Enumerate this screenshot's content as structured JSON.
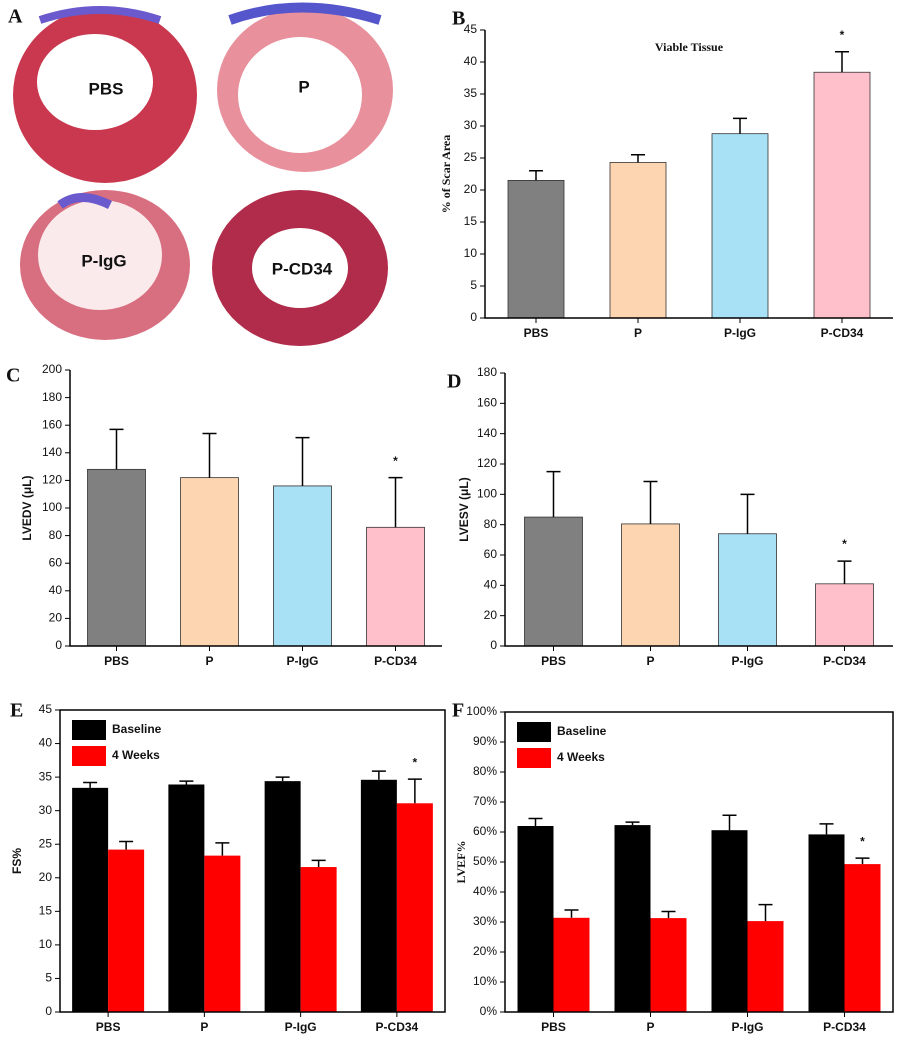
{
  "panel_a": {
    "panel_label": "A",
    "sections": [
      "PBS",
      "P",
      "P-IgG",
      "P-CD34"
    ]
  },
  "chart_data": [
    {
      "type": "bar",
      "panel_label": "B",
      "title": "Viable Tissue",
      "y_label": "% of Scar Area",
      "categories": [
        "PBS",
        "P",
        "P-IgG",
        "P-CD34"
      ],
      "values": [
        21.5,
        24.3,
        28.8,
        38.4
      ],
      "errors": [
        1.5,
        1.2,
        2.4,
        3.2
      ],
      "colors": [
        "#808080",
        "#fdd5b1",
        "#a8e0f5",
        "#ffc0cb"
      ],
      "ylim": [
        0,
        45
      ],
      "yticks": [
        0,
        5,
        10,
        15,
        20,
        25,
        30,
        35,
        40,
        45
      ],
      "annotations": [
        "*"
      ]
    },
    {
      "type": "bar",
      "panel_label": "C",
      "y_label": "LVEDV (μL)",
      "categories": [
        "PBS",
        "P",
        "P-IgG",
        "P-CD34"
      ],
      "values": [
        128,
        122,
        116,
        86
      ],
      "errors": [
        29,
        32,
        35,
        36
      ],
      "colors": [
        "#808080",
        "#fdd5b1",
        "#a8e0f5",
        "#ffc0cb"
      ],
      "ylim": [
        0,
        200
      ],
      "yticks": [
        0,
        20,
        40,
        60,
        80,
        100,
        120,
        140,
        160,
        180,
        200
      ],
      "annotations": [
        "*"
      ]
    },
    {
      "type": "bar",
      "panel_label": "D",
      "y_label": "LVESV (μL)",
      "categories": [
        "PBS",
        "P",
        "P-IgG",
        "P-CD34"
      ],
      "values": [
        85,
        80.5,
        74,
        41
      ],
      "errors": [
        30,
        28,
        26,
        15
      ],
      "colors": [
        "#808080",
        "#fdd5b1",
        "#a8e0f5",
        "#ffc0cb"
      ],
      "ylim": [
        0,
        180
      ],
      "yticks": [
        0,
        20,
        40,
        60,
        80,
        100,
        120,
        140,
        160,
        180
      ],
      "annotations": [
        "*"
      ]
    },
    {
      "type": "grouped_bar",
      "panel_label": "E",
      "y_label": "FS%",
      "categories": [
        "PBS",
        "P",
        "P-IgG",
        "P-CD34"
      ],
      "series": [
        {
          "name": "Baseline",
          "color": "#000000",
          "values": [
            33.4,
            33.9,
            34.4,
            34.6
          ],
          "errors": [
            0.8,
            0.5,
            0.6,
            1.3
          ]
        },
        {
          "name": "4 Weeks",
          "color": "#ff0000",
          "values": [
            24.2,
            23.3,
            21.6,
            31.1
          ],
          "errors": [
            1.2,
            1.9,
            1.0,
            3.6
          ]
        }
      ],
      "ylim": [
        0,
        45
      ],
      "yticks": [
        0,
        5,
        10,
        15,
        20,
        25,
        30,
        35,
        40,
        45
      ],
      "legend": "upper left",
      "annotations": [
        "*"
      ]
    },
    {
      "type": "grouped_bar",
      "panel_label": "F",
      "y_label": "LVEF%",
      "categories": [
        "PBS",
        "P",
        "P-IgG",
        "P-CD34"
      ],
      "series": [
        {
          "name": "Baseline",
          "color": "#000000",
          "values": [
            62,
            62.3,
            60.6,
            59.2
          ],
          "errors": [
            2.5,
            1,
            5,
            3.5
          ]
        },
        {
          "name": "4 Weeks",
          "color": "#ff0000",
          "values": [
            31.4,
            31.3,
            30.3,
            49.3
          ],
          "errors": [
            2.6,
            2.2,
            5.5,
            2
          ]
        }
      ],
      "ylim": [
        0,
        100
      ],
      "yticks": [
        {
          "value": 0,
          "label": "0%"
        },
        {
          "value": 10,
          "label": "10%"
        },
        {
          "value": 20,
          "label": "20%"
        },
        {
          "value": 30,
          "label": "30%"
        },
        {
          "value": 40,
          "label": "40%"
        },
        {
          "value": 50,
          "label": "50%"
        },
        {
          "value": 60,
          "label": "60%"
        },
        {
          "value": 70,
          "label": "70%"
        },
        {
          "value": 80,
          "label": "80%"
        },
        {
          "value": 90,
          "label": "90%"
        },
        {
          "value": 100,
          "label": "100%"
        }
      ],
      "legend": "upper left",
      "annotations": [
        "*"
      ]
    }
  ]
}
